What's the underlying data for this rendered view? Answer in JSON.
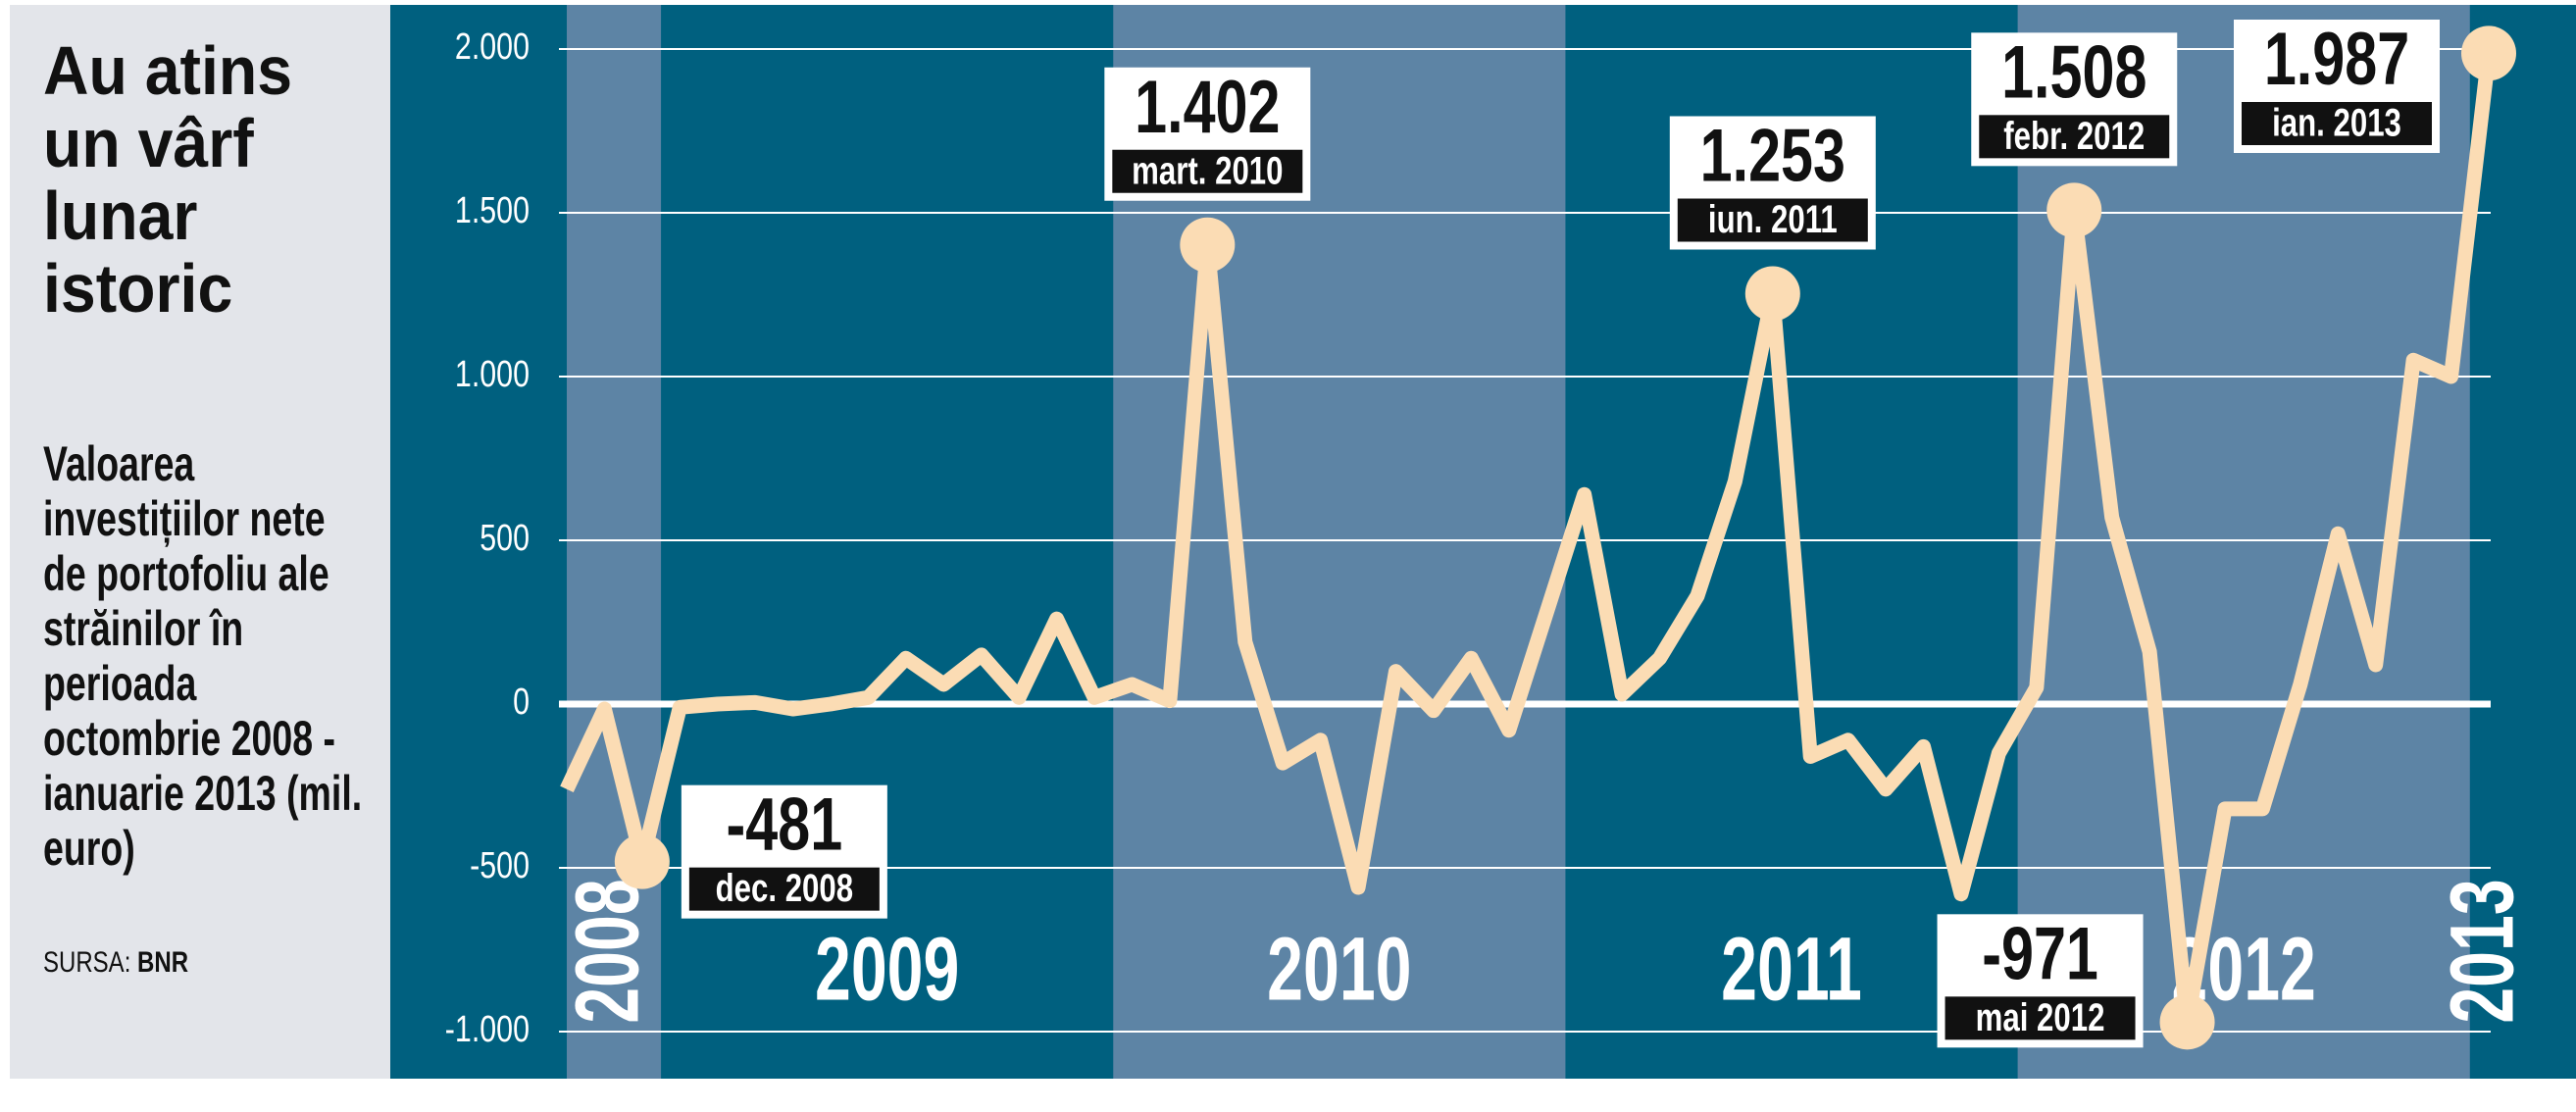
{
  "side": {
    "title": "Au atins un vârf lunar istoric",
    "subtitle": "Valoarea investițiilor nete de portofoliu ale străinilor în perioada octombrie 2008 - ianuarie 2013 (mil. euro)",
    "source_label": "SURSA:",
    "source": "BNR"
  },
  "chart_data": {
    "type": "line",
    "color": "#fbdcb4",
    "grid": true,
    "x": [
      "2008",
      "2008",
      "2008",
      "2009",
      "2009",
      "2009",
      "2009",
      "2009",
      "2009",
      "2009",
      "2009",
      "2009",
      "2009",
      "2009",
      "2009",
      "2010",
      "2010",
      "2010",
      "2010",
      "2010",
      "2010",
      "2010",
      "2010",
      "2010",
      "2010",
      "2010",
      "2010",
      "2011",
      "2011",
      "2011",
      "2011",
      "2011",
      "2011",
      "2011",
      "2011",
      "2011",
      "2011",
      "2011",
      "2011",
      "2012",
      "2012",
      "2012",
      "2012",
      "2012",
      "2012",
      "2012",
      "2012",
      "2012",
      "2012",
      "2012",
      "2012",
      "2013"
    ],
    "values": [
      -260,
      -15,
      -481,
      -10,
      0,
      5,
      -15,
      0,
      20,
      140,
      60,
      150,
      20,
      260,
      20,
      60,
      10,
      1402,
      190,
      -180,
      -110,
      -560,
      100,
      -20,
      140,
      -80,
      280,
      640,
      30,
      140,
      330,
      680,
      1253,
      -160,
      -110,
      -260,
      -130,
      -580,
      -150,
      50,
      1508,
      570,
      160,
      -971,
      -320,
      -320,
      60,
      520,
      120,
      1050,
      1000,
      1987
    ],
    "value_labels": [
      null,
      null,
      "-481",
      null,
      null,
      null,
      null,
      null,
      null,
      null,
      null,
      null,
      null,
      null,
      null,
      null,
      null,
      "1.402",
      null,
      null,
      null,
      null,
      null,
      null,
      null,
      null,
      null,
      null,
      null,
      null,
      null,
      null,
      "1.253",
      null,
      null,
      null,
      null,
      null,
      null,
      null,
      "1.508",
      null,
      null,
      "-971",
      null,
      null,
      null,
      null,
      null,
      null,
      null,
      "1.987"
    ],
    "date_labels": [
      null,
      null,
      "dec. 2008",
      null,
      null,
      null,
      null,
      null,
      null,
      null,
      null,
      null,
      null,
      null,
      null,
      null,
      null,
      "mart. 2010",
      null,
      null,
      null,
      null,
      null,
      null,
      null,
      null,
      null,
      null,
      null,
      null,
      null,
      null,
      "iun. 2011",
      null,
      null,
      null,
      null,
      null,
      null,
      null,
      "febr. 2012",
      null,
      null,
      "mai 2012",
      null,
      null,
      null,
      null,
      null,
      null,
      null,
      "ian. 2013"
    ],
    "ylim": [
      -1000,
      2000
    ],
    "yticks": [
      {
        "value": -1000,
        "label": "-1.000"
      },
      -500,
      0,
      500,
      {
        "value": 1000,
        "label": "1.000"
      },
      {
        "value": 1500,
        "label": "1.500"
      },
      {
        "value": 2000,
        "label": "2.000"
      }
    ]
  }
}
